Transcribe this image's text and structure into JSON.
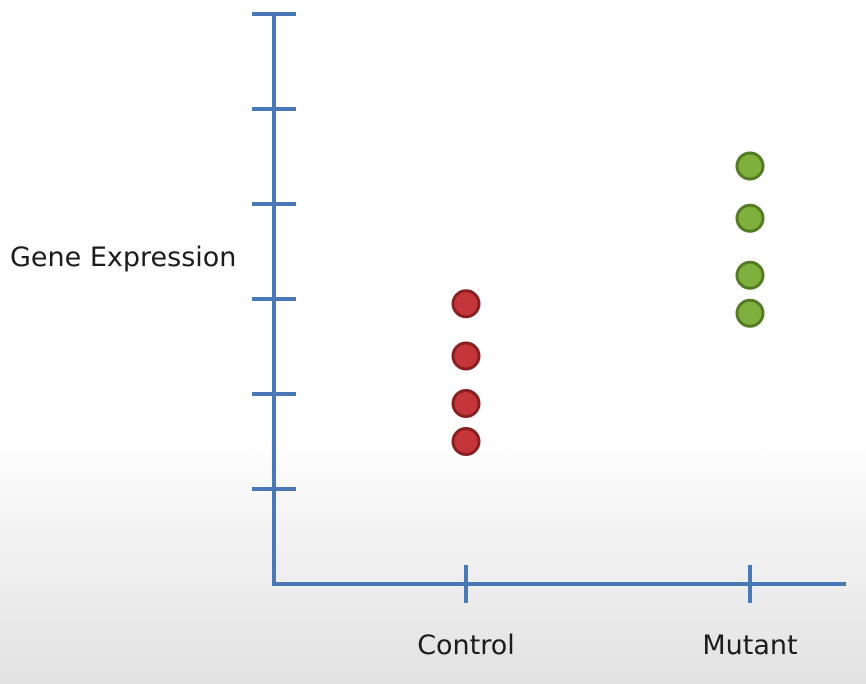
{
  "chart_data": {
    "type": "scatter",
    "title": "",
    "xlabel": "",
    "ylabel": "Gene Expression",
    "categories": [
      "Control",
      "Mutant"
    ],
    "ylim": [
      0,
      6
    ],
    "y_ticks": [
      1,
      2,
      3,
      4,
      5,
      6
    ],
    "grid": false,
    "legend": "none",
    "series": [
      {
        "category": "Control",
        "values": [
          1.5,
          1.9,
          2.4,
          2.95
        ],
        "color": "#c4363a",
        "edge_color": "#8a1f22"
      },
      {
        "category": "Mutant",
        "values": [
          2.85,
          3.25,
          3.85,
          4.4
        ],
        "color": "#7fb03d",
        "edge_color": "#557a24"
      }
    ],
    "axis_color": "#4a77b6"
  }
}
